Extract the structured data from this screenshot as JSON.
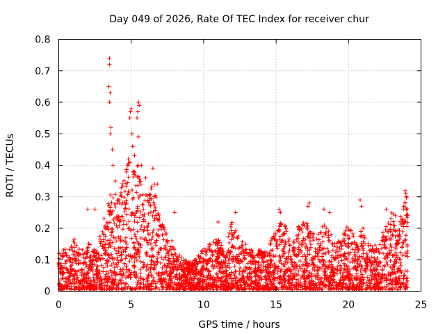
{
  "chart_data": {
    "type": "scatter",
    "title": "Day 049 of 2026, Rate Of TEC Index for receiver chur",
    "xlabel": "GPS time / hours",
    "ylabel": "ROTI / TECUs",
    "xlim": [
      0,
      25
    ],
    "ylim": [
      0,
      0.8
    ],
    "xticks": [
      0,
      5,
      10,
      15,
      20,
      25
    ],
    "yticks": [
      0,
      0.1,
      0.2,
      0.3,
      0.4,
      0.5,
      0.6,
      0.7,
      0.8
    ],
    "xtick_labels": [
      "0",
      "5",
      "10",
      "15",
      "20",
      "25"
    ],
    "ytick_labels": [
      "0",
      "0.1",
      "0.2",
      "0.3",
      "0.4",
      "0.5",
      "0.6",
      "0.7",
      "0.8"
    ],
    "grid": true,
    "marker": "+",
    "color": "#ff0000",
    "series": [
      {
        "name": "ROTI",
        "envelope_hours": [
          0,
          0.5,
          1,
          1.5,
          2,
          2.5,
          3,
          3.5,
          4,
          4.5,
          5,
          5.5,
          6,
          6.5,
          7,
          7.5,
          8,
          8.5,
          9,
          9.5,
          10,
          10.5,
          11,
          11.5,
          12,
          12.5,
          13,
          13.5,
          14,
          14.5,
          15,
          15.5,
          16,
          16.5,
          17,
          17.5,
          18,
          18.5,
          19,
          19.5,
          20,
          20.5,
          21,
          21.5,
          22,
          22.5,
          23,
          23.5,
          24
        ],
        "envelope_roti": [
          0.12,
          0.13,
          0.17,
          0.12,
          0.15,
          0.14,
          0.2,
          0.32,
          0.3,
          0.35,
          0.45,
          0.4,
          0.3,
          0.35,
          0.22,
          0.18,
          0.14,
          0.1,
          0.09,
          0.1,
          0.13,
          0.15,
          0.17,
          0.13,
          0.23,
          0.16,
          0.14,
          0.12,
          0.13,
          0.14,
          0.2,
          0.22,
          0.15,
          0.2,
          0.22,
          0.18,
          0.2,
          0.21,
          0.15,
          0.16,
          0.22,
          0.15,
          0.2,
          0.15,
          0.14,
          0.2,
          0.25,
          0.22,
          0.3
        ],
        "spikes": [
          {
            "x": 3.5,
            "y": 0.74
          },
          {
            "x": 3.5,
            "y": 0.72
          },
          {
            "x": 3.45,
            "y": 0.65
          },
          {
            "x": 3.55,
            "y": 0.63
          },
          {
            "x": 3.5,
            "y": 0.6
          },
          {
            "x": 3.6,
            "y": 0.52
          },
          {
            "x": 3.55,
            "y": 0.5
          },
          {
            "x": 3.7,
            "y": 0.45
          },
          {
            "x": 3.75,
            "y": 0.4
          },
          {
            "x": 3.9,
            "y": 0.35
          },
          {
            "x": 5.0,
            "y": 0.58
          },
          {
            "x": 4.95,
            "y": 0.57
          },
          {
            "x": 4.9,
            "y": 0.55
          },
          {
            "x": 5.05,
            "y": 0.5
          },
          {
            "x": 5.1,
            "y": 0.46
          },
          {
            "x": 4.8,
            "y": 0.42
          },
          {
            "x": 5.2,
            "y": 0.38
          },
          {
            "x": 5.5,
            "y": 0.6
          },
          {
            "x": 5.55,
            "y": 0.59
          },
          {
            "x": 5.45,
            "y": 0.57
          },
          {
            "x": 5.4,
            "y": 0.55
          },
          {
            "x": 5.5,
            "y": 0.49
          },
          {
            "x": 5.7,
            "y": 0.4
          },
          {
            "x": 6.0,
            "y": 0.36
          },
          {
            "x": 6.5,
            "y": 0.39
          },
          {
            "x": 6.6,
            "y": 0.34
          },
          {
            "x": 6.8,
            "y": 0.34
          },
          {
            "x": 2.0,
            "y": 0.26
          },
          {
            "x": 2.5,
            "y": 0.26
          },
          {
            "x": 8.0,
            "y": 0.25
          },
          {
            "x": 11.0,
            "y": 0.22
          },
          {
            "x": 12.2,
            "y": 0.25
          },
          {
            "x": 15.2,
            "y": 0.26
          },
          {
            "x": 15.3,
            "y": 0.25
          },
          {
            "x": 17.3,
            "y": 0.28
          },
          {
            "x": 17.2,
            "y": 0.27
          },
          {
            "x": 18.3,
            "y": 0.26
          },
          {
            "x": 18.7,
            "y": 0.25
          },
          {
            "x": 20.8,
            "y": 0.29
          },
          {
            "x": 20.9,
            "y": 0.27
          },
          {
            "x": 22.6,
            "y": 0.26
          },
          {
            "x": 23.9,
            "y": 0.32
          },
          {
            "x": 23.95,
            "y": 0.31
          },
          {
            "x": 24.0,
            "y": 0.3
          },
          {
            "x": 23.9,
            "y": 0.28
          },
          {
            "x": 21.0,
            "y": 0.2
          },
          {
            "x": 20.85,
            "y": 0.19
          },
          {
            "x": 16.6,
            "y": 0.2
          }
        ]
      }
    ]
  }
}
